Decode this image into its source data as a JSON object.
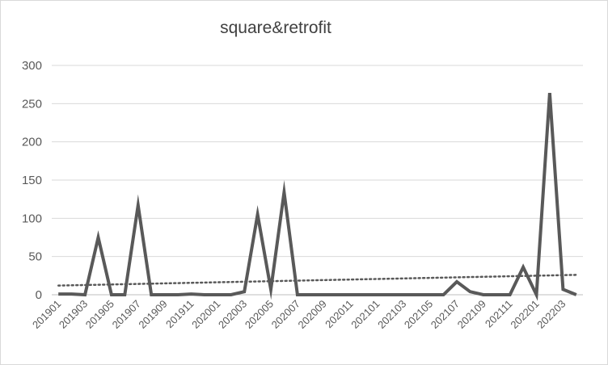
{
  "chart_data": {
    "type": "line",
    "title": "square&retrofit",
    "xlabel": "",
    "ylabel": "",
    "ylim": [
      0,
      300
    ],
    "yticks": [
      0,
      50,
      100,
      150,
      200,
      250,
      300
    ],
    "grid": true,
    "legend": "none",
    "x": [
      "201901",
      "201902",
      "201903",
      "201904",
      "201905",
      "201906",
      "201907",
      "201908",
      "201909",
      "201910",
      "201911",
      "201912",
      "202001",
      "202002",
      "202003",
      "202004",
      "202005",
      "202006",
      "202007",
      "202008",
      "202009",
      "202010",
      "202011",
      "202012",
      "202101",
      "202102",
      "202103",
      "202104",
      "202105",
      "202106",
      "202107",
      "202108",
      "202109",
      "202110",
      "202111",
      "202112",
      "202201",
      "202202",
      "202203",
      "202204"
    ],
    "x_tick_labels": [
      "201901",
      "201903",
      "201905",
      "201907",
      "201909",
      "201911",
      "202001",
      "202003",
      "202005",
      "202007",
      "202009",
      "202011",
      "202101",
      "202103",
      "202105",
      "202107",
      "202109",
      "202111",
      "202201",
      "202203"
    ],
    "series": [
      {
        "values": [
          1,
          1,
          0,
          75,
          0,
          0,
          117,
          0,
          0,
          0,
          1,
          0,
          0,
          0,
          4,
          105,
          7,
          134,
          0,
          0,
          0,
          0,
          0,
          0,
          0,
          0,
          0,
          0,
          0,
          0,
          17,
          4,
          0,
          0,
          0,
          36,
          0,
          264,
          7,
          0
        ],
        "color": "#595959",
        "style": "solid"
      },
      {
        "kind": "linear-trendline",
        "start": 12,
        "end": 26,
        "color": "#595959",
        "style": "dotted"
      }
    ]
  }
}
